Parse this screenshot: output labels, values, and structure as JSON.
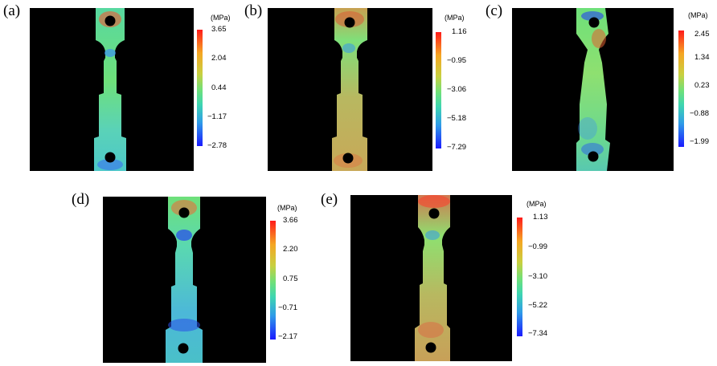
{
  "panels": [
    {
      "label": "(a)",
      "unit": "(MPa)",
      "ticks": [
        "3.65",
        "2.04",
        "0.44",
        "−1.17",
        "−2.78"
      ]
    },
    {
      "label": "(b)",
      "unit": "(MPa)",
      "ticks": [
        "1.16",
        "−0.95",
        "−3.06",
        "−5.18",
        "−7.29"
      ]
    },
    {
      "label": "(c)",
      "unit": "(MPa)",
      "ticks": [
        "2.45",
        "1.34",
        "0.23",
        "−0.88",
        "−1.99"
      ]
    },
    {
      "label": "(d)",
      "unit": "(MPa)",
      "ticks": [
        "3.66",
        "2.20",
        "0.75",
        "−0.71",
        "−2.17"
      ]
    },
    {
      "label": "(e)",
      "unit": "(MPa)",
      "ticks": [
        "1.13",
        "−0.99",
        "−3.10",
        "−5.22",
        "−7.34"
      ]
    }
  ]
}
